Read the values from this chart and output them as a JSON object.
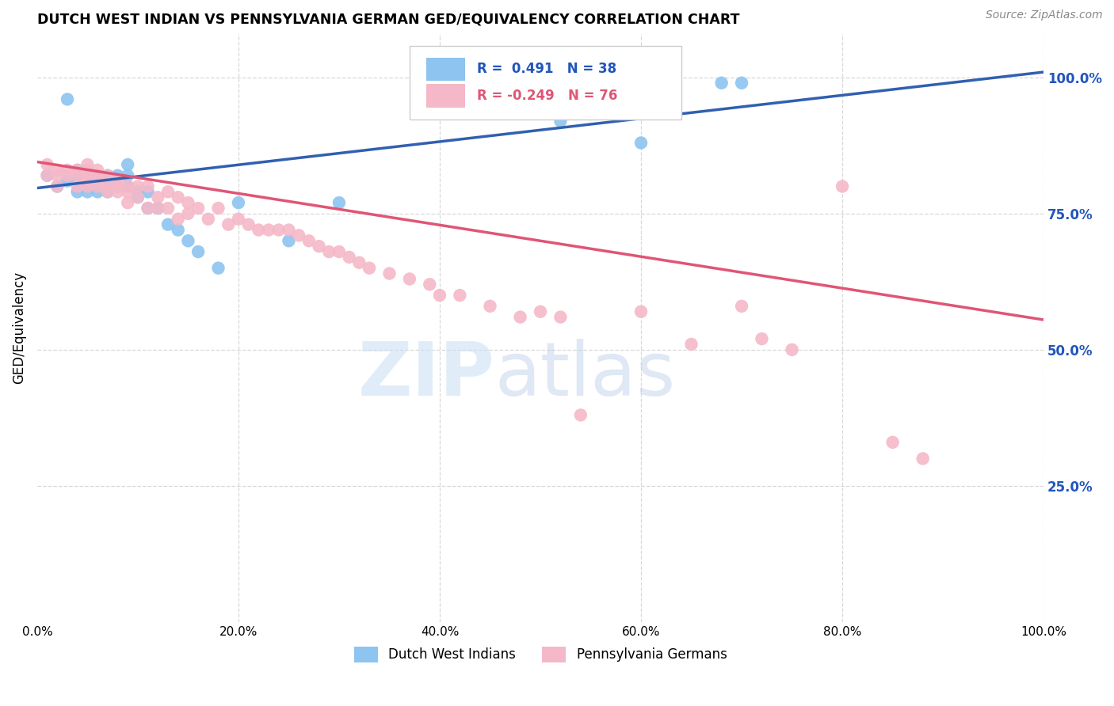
{
  "title": "DUTCH WEST INDIAN VS PENNSYLVANIA GERMAN GED/EQUIVALENCY CORRELATION CHART",
  "source": "Source: ZipAtlas.com",
  "ylabel": "GED/Equivalency",
  "xlim": [
    0.0,
    1.0
  ],
  "ylim": [
    0.0,
    1.08
  ],
  "ytick_labels": [
    "25.0%",
    "50.0%",
    "75.0%",
    "100.0%"
  ],
  "ytick_values": [
    0.25,
    0.5,
    0.75,
    1.0
  ],
  "xtick_values": [
    0.0,
    0.2,
    0.4,
    0.6,
    0.8,
    1.0
  ],
  "R_blue": 0.491,
  "N_blue": 38,
  "R_pink": -0.249,
  "N_pink": 76,
  "blue_color": "#8dc4f0",
  "pink_color": "#f5b8c8",
  "blue_line_color": "#3060b0",
  "pink_line_color": "#e05575",
  "legend_text_color": "#2255bb",
  "background_color": "#ffffff",
  "grid_color": "#d8d8d8",
  "blue_scatter_x": [
    0.01,
    0.02,
    0.03,
    0.03,
    0.04,
    0.04,
    0.04,
    0.05,
    0.05,
    0.05,
    0.06,
    0.06,
    0.06,
    0.07,
    0.07,
    0.07,
    0.08,
    0.08,
    0.09,
    0.09,
    0.09,
    0.1,
    0.1,
    0.11,
    0.11,
    0.12,
    0.13,
    0.14,
    0.15,
    0.16,
    0.18,
    0.2,
    0.25,
    0.3,
    0.52,
    0.6,
    0.68,
    0.7
  ],
  "blue_scatter_y": [
    0.82,
    0.8,
    0.96,
    0.81,
    0.79,
    0.83,
    0.82,
    0.82,
    0.8,
    0.79,
    0.79,
    0.82,
    0.81,
    0.82,
    0.8,
    0.79,
    0.82,
    0.8,
    0.84,
    0.82,
    0.8,
    0.79,
    0.78,
    0.79,
    0.76,
    0.76,
    0.73,
    0.72,
    0.7,
    0.68,
    0.65,
    0.77,
    0.7,
    0.77,
    0.92,
    0.88,
    0.99,
    0.99
  ],
  "pink_scatter_x": [
    0.01,
    0.01,
    0.02,
    0.02,
    0.02,
    0.03,
    0.03,
    0.04,
    0.04,
    0.04,
    0.05,
    0.05,
    0.05,
    0.05,
    0.05,
    0.06,
    0.06,
    0.06,
    0.06,
    0.07,
    0.07,
    0.07,
    0.08,
    0.08,
    0.08,
    0.09,
    0.09,
    0.09,
    0.1,
    0.1,
    0.11,
    0.11,
    0.12,
    0.12,
    0.13,
    0.13,
    0.14,
    0.14,
    0.15,
    0.15,
    0.16,
    0.17,
    0.18,
    0.19,
    0.2,
    0.21,
    0.22,
    0.23,
    0.24,
    0.25,
    0.26,
    0.27,
    0.28,
    0.29,
    0.3,
    0.31,
    0.32,
    0.33,
    0.35,
    0.37,
    0.39,
    0.4,
    0.42,
    0.45,
    0.48,
    0.5,
    0.52,
    0.54,
    0.6,
    0.65,
    0.7,
    0.72,
    0.75,
    0.8,
    0.85,
    0.88
  ],
  "pink_scatter_y": [
    0.84,
    0.82,
    0.83,
    0.82,
    0.8,
    0.83,
    0.82,
    0.83,
    0.82,
    0.8,
    0.84,
    0.83,
    0.82,
    0.81,
    0.8,
    0.83,
    0.82,
    0.81,
    0.8,
    0.82,
    0.8,
    0.79,
    0.81,
    0.8,
    0.79,
    0.8,
    0.79,
    0.77,
    0.8,
    0.78,
    0.8,
    0.76,
    0.78,
    0.76,
    0.79,
    0.76,
    0.78,
    0.74,
    0.77,
    0.75,
    0.76,
    0.74,
    0.76,
    0.73,
    0.74,
    0.73,
    0.72,
    0.72,
    0.72,
    0.72,
    0.71,
    0.7,
    0.69,
    0.68,
    0.68,
    0.67,
    0.66,
    0.65,
    0.64,
    0.63,
    0.62,
    0.6,
    0.6,
    0.58,
    0.56,
    0.57,
    0.56,
    0.38,
    0.57,
    0.51,
    0.58,
    0.52,
    0.5,
    0.8,
    0.33,
    0.3
  ],
  "blue_line_x0": 0.0,
  "blue_line_y0": 0.797,
  "blue_line_x1": 1.0,
  "blue_line_y1": 1.01,
  "pink_line_x0": 0.0,
  "pink_line_y0": 0.845,
  "pink_line_x1": 1.0,
  "pink_line_y1": 0.555
}
